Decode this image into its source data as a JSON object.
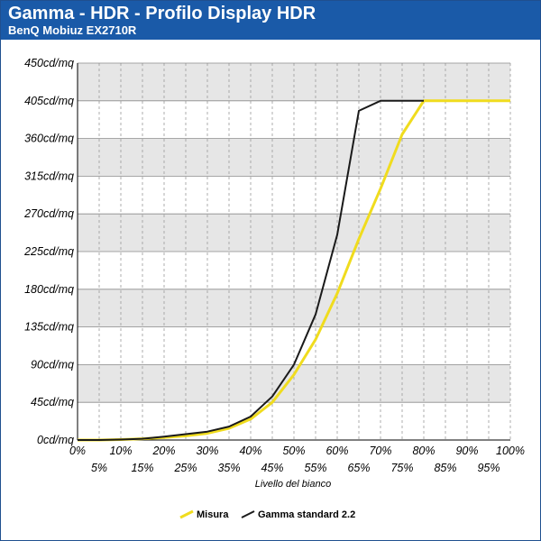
{
  "header": {
    "title": "Gamma - HDR - Profilo Display HDR",
    "subtitle": "BenQ Mobiuz EX2710R"
  },
  "colors": {
    "header_bg": "#1a5aa8",
    "band": "#e6e6e6",
    "measured": "#f0dc1e",
    "standard": "#1a1a1a"
  },
  "chart_data": {
    "type": "line",
    "xlabel": "Livello del bianco",
    "ylabel": "",
    "x": [
      0,
      5,
      10,
      15,
      20,
      25,
      30,
      35,
      40,
      45,
      50,
      55,
      60,
      65,
      70,
      75,
      80,
      85,
      90,
      95,
      100
    ],
    "x_tick_labels": [
      "0%",
      "5%",
      "10%",
      "15%",
      "20%",
      "25%",
      "30%",
      "35%",
      "40%",
      "45%",
      "50%",
      "55%",
      "60%",
      "65%",
      "70%",
      "75%",
      "80%",
      "85%",
      "90%",
      "95%",
      "100%"
    ],
    "ylim": [
      0,
      450
    ],
    "y_ticks": [
      0,
      45,
      90,
      135,
      180,
      225,
      270,
      315,
      360,
      405,
      450
    ],
    "y_tick_labels": [
      "0cd/mq",
      "45cd/mq",
      "90cd/mq",
      "135cd/mq",
      "180cd/mq",
      "225cd/mq",
      "270cd/mq",
      "315cd/mq",
      "360cd/mq",
      "405cd/mq",
      "450cd/mq"
    ],
    "grid": true,
    "legend_position": "bottom-center",
    "series": [
      {
        "name": "Misura",
        "color": "#f0dc1e",
        "x": [
          0,
          5,
          10,
          15,
          20,
          25,
          30,
          35,
          40,
          45,
          50,
          55,
          60,
          65,
          70,
          75,
          80,
          85,
          90,
          95,
          100
        ],
        "values": [
          0,
          0,
          0.5,
          1.5,
          3,
          5,
          8,
          14,
          25,
          45,
          78,
          120,
          175,
          240,
          300,
          365,
          405,
          405,
          405,
          405,
          405
        ]
      },
      {
        "name": "Gamma standard 2.2",
        "color": "#1a1a1a",
        "x": [
          0,
          5,
          10,
          15,
          20,
          25,
          30,
          35,
          40,
          45,
          50,
          55,
          60,
          65,
          70,
          75,
          80
        ],
        "values": [
          0,
          0,
          0.5,
          1.5,
          4,
          7,
          10,
          16,
          28,
          52,
          90,
          150,
          245,
          393,
          405,
          405,
          405
        ]
      }
    ]
  }
}
